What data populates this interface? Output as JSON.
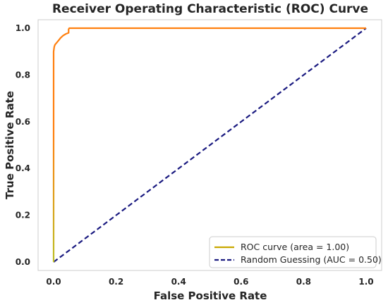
{
  "chart_data": {
    "type": "line",
    "title": "Receiver Operating Characteristic (ROC) Curve",
    "xlabel": "False Positive Rate",
    "ylabel": "True Positive Rate",
    "xlim": [
      0.0,
      1.0
    ],
    "ylim": [
      0.0,
      1.0
    ],
    "xticks": [
      "0.0",
      "0.2",
      "0.4",
      "0.6",
      "0.8",
      "1.0"
    ],
    "yticks": [
      "0.0",
      "0.2",
      "0.4",
      "0.6",
      "0.8",
      "1.0"
    ],
    "grid": false,
    "legend_position": "lower-right",
    "series": [
      {
        "name": "ROC curve (area = 1.00)",
        "style": "solid",
        "color": "#ff7f0e",
        "gradient_start_color": "#bcbd22",
        "x": [
          0.0,
          0.0,
          0.0,
          0.0,
          0.002,
          0.004,
          0.006,
          0.01,
          0.016,
          0.022,
          0.03,
          0.04,
          0.048,
          0.048,
          0.05,
          1.0
        ],
        "y": [
          0.0,
          0.5,
          0.87,
          0.9,
          0.92,
          0.928,
          0.932,
          0.938,
          0.948,
          0.958,
          0.968,
          0.976,
          0.98,
          0.995,
          1.0,
          1.0
        ]
      },
      {
        "name": "Random Guessing (AUC = 0.50)",
        "style": "dashed",
        "color": "#1a1a80",
        "x": [
          0.0,
          1.0
        ],
        "y": [
          0.0,
          1.0
        ]
      }
    ]
  }
}
